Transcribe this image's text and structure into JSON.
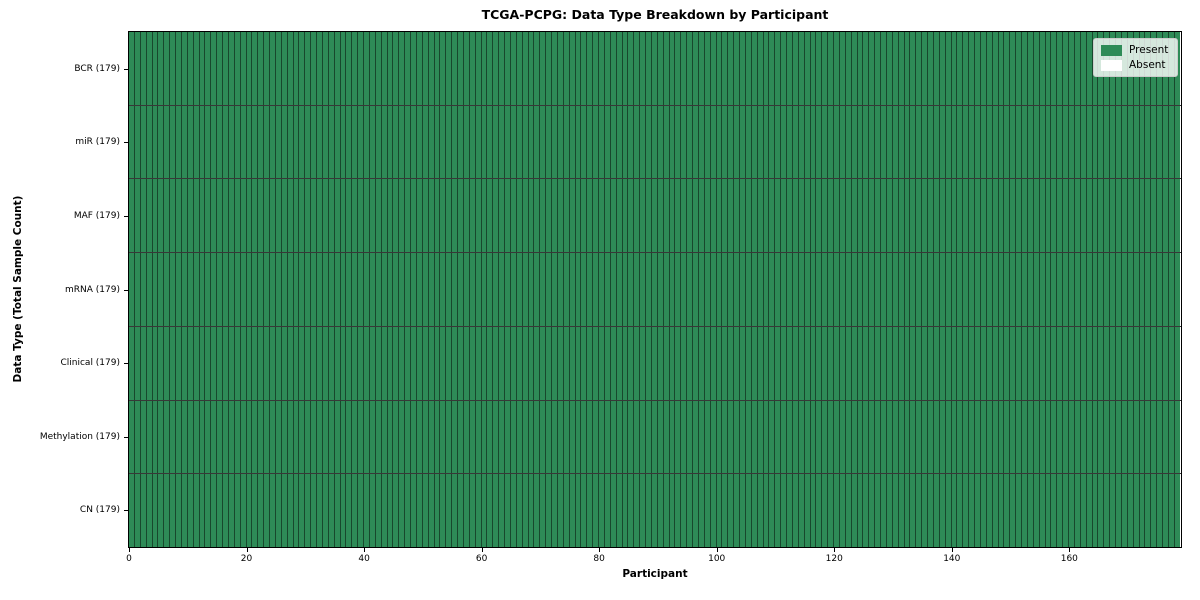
{
  "chart_data": {
    "type": "heatmap",
    "title": "TCGA-PCPG: Data Type Breakdown by Participant",
    "xlabel": "Participant",
    "ylabel": "Data Type (Total Sample Count)",
    "n_participants": 179,
    "x_range": [
      0,
      179
    ],
    "xticks": [
      0,
      20,
      40,
      60,
      80,
      100,
      120,
      140,
      160
    ],
    "rows": [
      {
        "name": "BCR",
        "total": 179,
        "tick_label": "BCR (179)",
        "present_count": 179,
        "absent_count": 0
      },
      {
        "name": "miR",
        "total": 179,
        "tick_label": "miR (179)",
        "present_count": 179,
        "absent_count": 0
      },
      {
        "name": "MAF",
        "total": 179,
        "tick_label": "MAF (179)",
        "present_count": 179,
        "absent_count": 0
      },
      {
        "name": "mRNA",
        "total": 179,
        "tick_label": "mRNA (179)",
        "present_count": 179,
        "absent_count": 0
      },
      {
        "name": "Clinical",
        "total": 179,
        "tick_label": "Clinical (179)",
        "present_count": 179,
        "absent_count": 0
      },
      {
        "name": "Methylation",
        "total": 179,
        "tick_label": "Methylation (179)",
        "present_count": 179,
        "absent_count": 0
      },
      {
        "name": "CN",
        "total": 179,
        "tick_label": "CN (179)",
        "present_count": 179,
        "absent_count": 0
      }
    ],
    "legend": {
      "position": "upper right",
      "entries": [
        {
          "label": "Present",
          "color": "#2e8b57"
        },
        {
          "label": "Absent",
          "color": "#ffffff"
        }
      ]
    },
    "colors": {
      "present": "#2e8b57",
      "absent": "#ffffff",
      "edge": "#000000"
    },
    "grid": false
  }
}
